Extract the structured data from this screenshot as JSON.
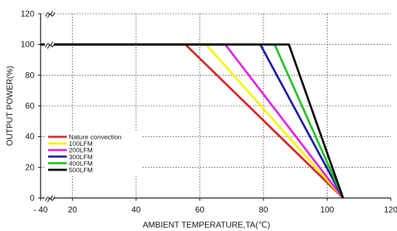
{
  "chart_data": {
    "type": "line",
    "xlabel": "AMBIENT TEMPERATURE,TA(℃)",
    "ylabel": "OUTPUT POWER(%)",
    "x_ticks": [
      "- 40",
      "20",
      "40",
      "60",
      "80",
      "100",
      "120"
    ],
    "y_ticks": [
      "0",
      "20",
      "40",
      "60",
      "80",
      "100",
      "120"
    ],
    "xlim": [
      10,
      120
    ],
    "ylim": [
      0,
      120
    ],
    "grid": true,
    "axis_break_x": true,
    "legend_position": "bottom-left",
    "series": [
      {
        "name": "Nature convection",
        "color": "#d62020",
        "x": [
          10,
          55.5,
          105
        ],
        "y": [
          100,
          100,
          0
        ]
      },
      {
        "name": "100LFM",
        "color": "#f5f500",
        "x": [
          10,
          62,
          105
        ],
        "y": [
          100,
          100,
          0
        ]
      },
      {
        "name": "200LFM",
        "color": "#e020e0",
        "x": [
          10,
          68,
          105
        ],
        "y": [
          100,
          100,
          0
        ]
      },
      {
        "name": "300LFM",
        "color": "#1a1aa0",
        "x": [
          10,
          79,
          105
        ],
        "y": [
          100,
          100,
          0
        ]
      },
      {
        "name": "400LFM",
        "color": "#20c020",
        "x": [
          10,
          83.5,
          105
        ],
        "y": [
          100,
          100,
          0
        ]
      },
      {
        "name": "500LFM",
        "color": "#000000",
        "x": [
          10,
          88,
          105
        ],
        "y": [
          100,
          100,
          0
        ]
      }
    ]
  }
}
